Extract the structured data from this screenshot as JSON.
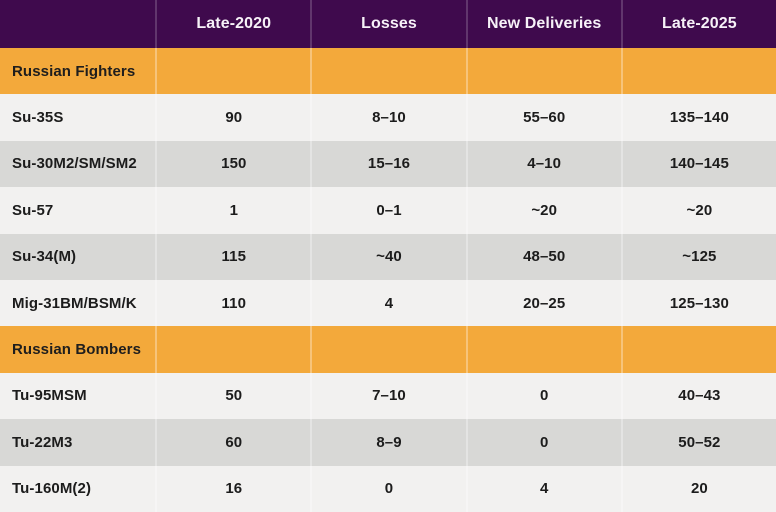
{
  "colors": {
    "header_bg": "#3f0a4d",
    "header_text": "#f7f2f8",
    "section_bg": "#f3a93b",
    "row_light_bg": "#f2f1f0",
    "row_dark_bg": "#d8d8d6",
    "body_text": "#1c1c1c"
  },
  "header": {
    "columns": [
      "",
      "Late-2020",
      "Losses",
      "New Deliveries",
      "Late-2025"
    ]
  },
  "sections": [
    {
      "label": "Russian Fighters",
      "rows": [
        {
          "label": "Su-35S",
          "values": [
            "90",
            "8–10",
            "55–60",
            "135–140"
          ]
        },
        {
          "label": "Su-30M2/SM/SM2",
          "values": [
            "150",
            "15–16",
            "4–10",
            "140–145"
          ]
        },
        {
          "label": "Su-57",
          "values": [
            "1",
            "0–1",
            "~20",
            "~20"
          ]
        },
        {
          "label": "Su-34(M)",
          "values": [
            "115",
            "~40",
            "48–50",
            "~125"
          ]
        },
        {
          "label": "Mig-31BM/BSM/K",
          "values": [
            "110",
            "4",
            "20–25",
            "125–130"
          ]
        }
      ]
    },
    {
      "label": "Russian Bombers",
      "rows": [
        {
          "label": "Tu-95MSM",
          "values": [
            "50",
            "7–10",
            "0",
            "40–43"
          ]
        },
        {
          "label": "Tu-22M3",
          "values": [
            "60",
            "8–9",
            "0",
            "50–52"
          ]
        },
        {
          "label": "Tu-160M(2)",
          "values": [
            "16",
            "0",
            "4",
            "20"
          ]
        }
      ]
    }
  ]
}
